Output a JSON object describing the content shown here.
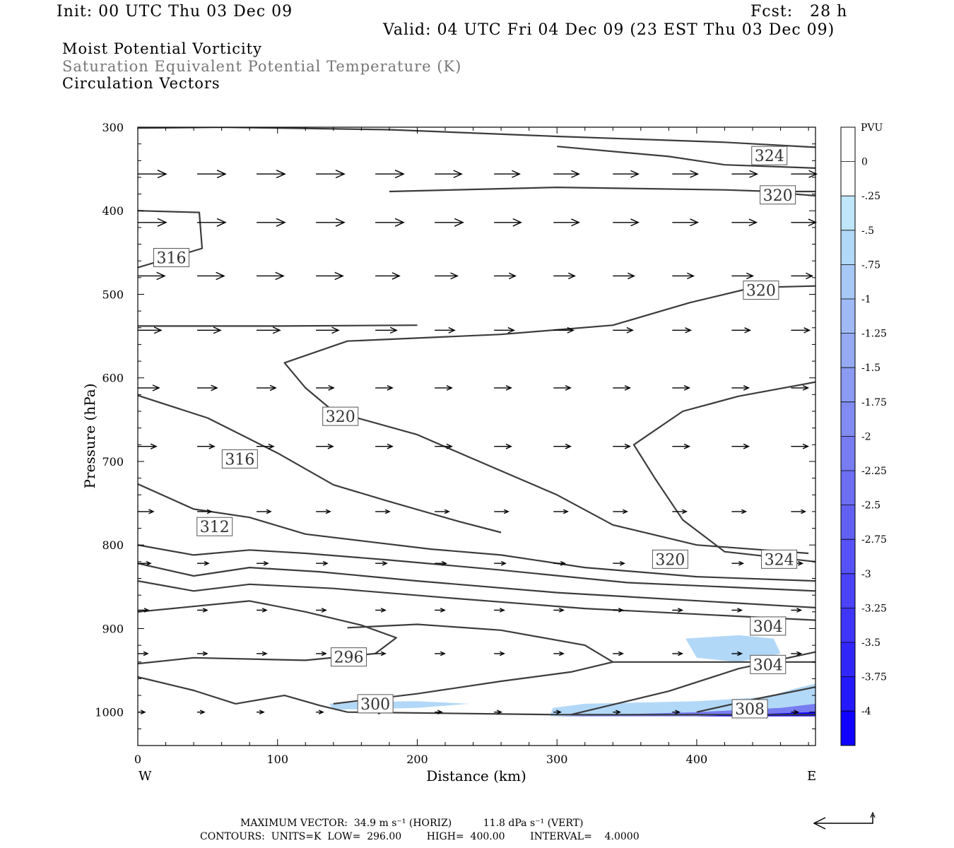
{
  "header": {
    "init": "Init: 00 UTC Thu 03 Dec 09",
    "fcst": "Fcst:   28 h",
    "valid": "Valid: 04 UTC Fri 04 Dec 09 (23 EST Thu 03 Dec 09)"
  },
  "fields": {
    "shaded": "Moist Potential Vorticity",
    "contour": "Saturation Equivalent Potential Temperature (K)",
    "vectors": "Circulation Vectors"
  },
  "footer": {
    "max_vector": "MAXIMUM VECTOR:  34.9 m s⁻¹ (HORIZ)          11.8 dPa s⁻¹ (VERT)",
    "contours": "CONTOURS:  UNITS=K  LOW=  296.00        HIGH=  400.00        INTERVAL=    4.0000"
  },
  "chart_data": {
    "type": "cross-section",
    "xlabel": "Distance (km)",
    "ylabel": "Pressure (hPa)",
    "xlim": [
      0,
      485
    ],
    "ylim": [
      300,
      1040
    ],
    "y_scale": "linear (inverted)",
    "x_ticks": [
      0,
      100,
      200,
      300,
      400
    ],
    "x_tick_labels": [
      "0",
      "100",
      "200",
      "300",
      "400"
    ],
    "y_ticks": [
      300,
      400,
      500,
      600,
      700,
      800,
      900,
      1000
    ],
    "y_tick_labels": [
      "300",
      "400",
      "500",
      "600",
      "700",
      "800",
      "900",
      "1000"
    ],
    "x_end_labels": {
      "left": "W",
      "right": "E"
    },
    "colorbar": {
      "units": "PVU",
      "levels": [
        "0",
        "-.25",
        "-.5",
        "-.75",
        "-1",
        "-1.25",
        "-1.5",
        "-1.75",
        "-2",
        "-2.25",
        "-2.5",
        "-2.75",
        "-3",
        "-3.25",
        "-3.5",
        "-3.75",
        "-4"
      ],
      "colors": [
        "#ffffff",
        "#ffffff",
        "#bfe6fa",
        "#b2d8f7",
        "#a8c8f5",
        "#9fbaf4",
        "#95aaf3",
        "#8b9af2",
        "#818bf1",
        "#777cf1",
        "#6d6ef2",
        "#6260f3",
        "#5752f5",
        "#4b43f7",
        "#3f35f9",
        "#3227fb",
        "#2418fd",
        "#1000ff"
      ]
    },
    "contour_labels": [
      {
        "text": "324",
        "x": 452,
        "p": 334
      },
      {
        "text": "320",
        "x": 458,
        "p": 381
      },
      {
        "text": "316",
        "x": 24,
        "p": 456
      },
      {
        "text": "320",
        "x": 446,
        "p": 495
      },
      {
        "text": "320",
        "x": 145,
        "p": 646
      },
      {
        "text": "316",
        "x": 73,
        "p": 697
      },
      {
        "text": "312",
        "x": 55,
        "p": 778
      },
      {
        "text": "320",
        "x": 381,
        "p": 817
      },
      {
        "text": "324",
        "x": 459,
        "p": 817
      },
      {
        "text": "304",
        "x": 451,
        "p": 897
      },
      {
        "text": "296",
        "x": 151,
        "p": 934
      },
      {
        "text": "304",
        "x": 451,
        "p": 943
      },
      {
        "text": "300",
        "x": 170,
        "p": 990
      },
      {
        "text": "308",
        "x": 438,
        "p": 996
      }
    ],
    "contours": [
      [
        [
          0,
          301
        ],
        [
          60,
          300
        ],
        [
          180,
          303
        ],
        [
          300,
          311
        ],
        [
          420,
          318
        ],
        [
          485,
          324
        ]
      ],
      [
        [
          300,
          323
        ],
        [
          380,
          335
        ],
        [
          420,
          345
        ],
        [
          485,
          349
        ]
      ],
      [
        [
          0,
          400
        ],
        [
          44,
          402
        ],
        [
          46,
          445
        ],
        [
          0,
          468
        ]
      ],
      [
        [
          180,
          377
        ],
        [
          300,
          372
        ],
        [
          420,
          375
        ],
        [
          455,
          377
        ],
        [
          485,
          377
        ]
      ],
      [
        [
          485,
          382
        ],
        [
          470,
          380
        ]
      ],
      [
        [
          0,
          538
        ],
        [
          100,
          538
        ],
        [
          200,
          537
        ]
      ],
      [
        [
          485,
          490
        ],
        [
          440,
          492
        ],
        [
          395,
          510
        ],
        [
          340,
          537
        ],
        [
          260,
          548
        ],
        [
          150,
          556
        ],
        [
          105,
          582
        ],
        [
          120,
          612
        ],
        [
          140,
          640
        ],
        [
          200,
          668
        ],
        [
          240,
          697
        ],
        [
          300,
          740
        ],
        [
          340,
          776
        ],
        [
          400,
          800
        ],
        [
          480,
          810
        ]
      ],
      [
        [
          0,
          621
        ],
        [
          50,
          648
        ],
        [
          100,
          690
        ],
        [
          140,
          728
        ],
        [
          180,
          748
        ],
        [
          230,
          772
        ],
        [
          260,
          785
        ]
      ],
      [
        [
          485,
          605
        ],
        [
          430,
          622
        ],
        [
          390,
          640
        ],
        [
          355,
          680
        ],
        [
          370,
          720
        ],
        [
          390,
          770
        ],
        [
          420,
          808
        ],
        [
          485,
          820
        ]
      ],
      [
        [
          0,
          727
        ],
        [
          40,
          757
        ],
        [
          80,
          767
        ],
        [
          120,
          787
        ],
        [
          160,
          795
        ],
        [
          210,
          805
        ],
        [
          260,
          812
        ],
        [
          320,
          827
        ],
        [
          400,
          838
        ],
        [
          485,
          843
        ]
      ],
      [
        [
          0,
          800
        ],
        [
          40,
          812
        ],
        [
          80,
          806
        ],
        [
          120,
          810
        ],
        [
          180,
          818
        ],
        [
          260,
          830
        ],
        [
          350,
          845
        ],
        [
          485,
          855
        ]
      ],
      [
        [
          0,
          822
        ],
        [
          40,
          837
        ],
        [
          80,
          827
        ],
        [
          130,
          832
        ],
        [
          200,
          843
        ],
        [
          300,
          857
        ],
        [
          485,
          875
        ]
      ],
      [
        [
          0,
          843
        ],
        [
          40,
          855
        ],
        [
          80,
          847
        ],
        [
          140,
          852
        ],
        [
          220,
          863
        ],
        [
          320,
          876
        ],
        [
          485,
          890
        ]
      ],
      [
        [
          0,
          880
        ],
        [
          80,
          867
        ],
        [
          120,
          880
        ],
        [
          160,
          896
        ],
        [
          185,
          911
        ],
        [
          170,
          930
        ],
        [
          120,
          938
        ],
        [
          40,
          935
        ],
        [
          0,
          942
        ]
      ],
      [
        [
          0,
          958
        ],
        [
          40,
          974
        ],
        [
          70,
          990
        ],
        [
          105,
          980
        ],
        [
          130,
          992
        ],
        [
          150,
          1000
        ],
        [
          300,
          1003
        ],
        [
          485,
          1003
        ]
      ],
      [
        [
          140,
          990
        ],
        [
          200,
          978
        ],
        [
          260,
          963
        ],
        [
          310,
          952
        ],
        [
          340,
          940
        ],
        [
          320,
          920
        ],
        [
          260,
          902
        ],
        [
          200,
          895
        ],
        [
          150,
          899
        ]
      ],
      [
        [
          340,
          940
        ],
        [
          485,
          940
        ]
      ],
      [
        [
          310,
          1003
        ],
        [
          380,
          975
        ],
        [
          430,
          948
        ],
        [
          485,
          928
        ]
      ],
      [
        [
          400,
          1000
        ],
        [
          440,
          985
        ],
        [
          485,
          970
        ]
      ]
    ],
    "shading": [
      {
        "level": "-.5",
        "points": [
          [
            137,
            990
          ],
          [
            160,
            988
          ],
          [
            200,
            987
          ],
          [
            237,
            990
          ],
          [
            200,
            995
          ],
          [
            140,
            997
          ]
        ]
      },
      {
        "level": "-.5",
        "points": [
          [
            295,
            1005
          ],
          [
            297,
            995
          ],
          [
            320,
            990
          ],
          [
            400,
            987
          ],
          [
            450,
            982
          ],
          [
            470,
            972
          ],
          [
            485,
            966
          ],
          [
            485,
            1005
          ]
        ]
      },
      {
        "level": "-.5",
        "points": [
          [
            392,
            912
          ],
          [
            430,
            908
          ],
          [
            455,
            912
          ],
          [
            460,
            930
          ],
          [
            430,
            940
          ],
          [
            400,
            935
          ]
        ]
      },
      {
        "level": "-2",
        "points": [
          [
            298,
            1005
          ],
          [
            400,
            1000
          ],
          [
            460,
            995
          ],
          [
            485,
            990
          ],
          [
            485,
            1005
          ]
        ]
      },
      {
        "level": "-4",
        "points": [
          [
            400,
            1005
          ],
          [
            485,
            1000
          ],
          [
            485,
            1005
          ]
        ]
      }
    ],
    "vectors": {
      "x": [
        0,
        42.5,
        85,
        127.5,
        170,
        212.5,
        255,
        297.5,
        340,
        382.5,
        425,
        467.5
      ],
      "rows": [
        {
          "p": 356,
          "dx": [
            40,
            40,
            40,
            40,
            40,
            38,
            36,
            36,
            36,
            36,
            36,
            36
          ]
        },
        {
          "p": 414,
          "dx": [
            40,
            40,
            40,
            40,
            40,
            40,
            38,
            36,
            36,
            36,
            35,
            35
          ]
        },
        {
          "p": 478,
          "dx": [
            38,
            38,
            38,
            38,
            34,
            32,
            30,
            30,
            30,
            30,
            30,
            30
          ]
        },
        {
          "p": 543,
          "dx": [
            33,
            33,
            33,
            32,
            30,
            28,
            28,
            28,
            28,
            26,
            26,
            26
          ]
        },
        {
          "p": 612,
          "dx": [
            30,
            28,
            27,
            25,
            24,
            24,
            24,
            24,
            24,
            24,
            24,
            24
          ]
        },
        {
          "p": 682,
          "dx": [
            26,
            24,
            24,
            24,
            24,
            24,
            24,
            24,
            24,
            24,
            24,
            24
          ]
        },
        {
          "p": 760,
          "dx": [
            22,
            20,
            20,
            20,
            20,
            20,
            20,
            20,
            20,
            20,
            20,
            20
          ]
        },
        {
          "p": 822,
          "dx": [
            18,
            16,
            16,
            16,
            16,
            16,
            16,
            16,
            16,
            16,
            16,
            16
          ]
        },
        {
          "p": 878,
          "dx": [
            15,
            14,
            14,
            14,
            14,
            14,
            14,
            14,
            14,
            14,
            14,
            14
          ]
        },
        {
          "p": 930,
          "dx": [
            14,
            14,
            14,
            14,
            14,
            14,
            14,
            14,
            14,
            14,
            14,
            14
          ]
        },
        {
          "p": 1000,
          "dx": [
            10,
            10,
            10,
            10,
            10,
            10,
            10,
            10,
            10,
            10,
            10,
            10
          ]
        }
      ]
    }
  }
}
